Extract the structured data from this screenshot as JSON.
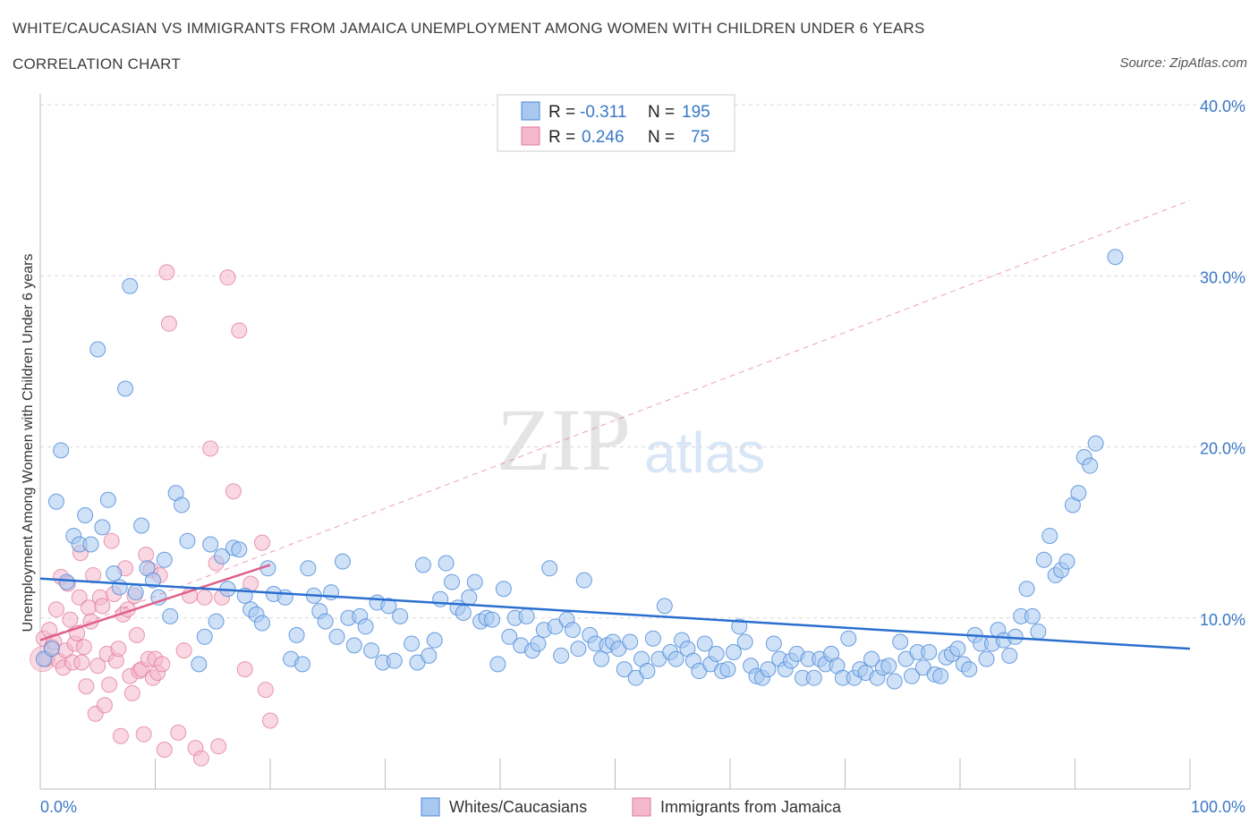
{
  "title": "WHITE/CAUCASIAN VS IMMIGRANTS FROM JAMAICA UNEMPLOYMENT AMONG WOMEN WITH CHILDREN UNDER 6 YEARS",
  "subtitle": "CORRELATION CHART",
  "source": "Source: ZipAtlas.com",
  "watermark": {
    "zip": "ZIP",
    "atlas": "atlas"
  },
  "legend": {
    "row1": {
      "r_label": "R =",
      "r_value": "-0.311",
      "n_label": "N =",
      "n_value": "195"
    },
    "row2": {
      "r_label": "R =",
      "r_value": "0.246",
      "n_label": "N =",
      "n_value": "75"
    }
  },
  "bottom_legend": {
    "series1": "Whites/Caucasians",
    "series2": "Immigrants from Jamaica"
  },
  "colors": {
    "blue_fill": "#a8c8f0",
    "blue_stroke": "#4a88d8",
    "blue_line": "#2a6fd0",
    "pink_fill": "#f4b8cc",
    "pink_stroke": "#e07898",
    "pink_line": "#e0608a",
    "grid": "#d8d8d8",
    "tick_text": "#3a78c8"
  },
  "chart_data": {
    "type": "scatter",
    "title": "WHITE/CAUCASIAN VS IMMIGRANTS FROM JAMAICA UNEMPLOYMENT AMONG WOMEN WITH CHILDREN UNDER 6 YEARS",
    "xlabel": "",
    "ylabel": "Unemployment Among Women with Children Under 6 years",
    "xlim": [
      0,
      100
    ],
    "ylim": [
      0,
      40
    ],
    "x_tick_labels": [
      "0.0%",
      "100.0%"
    ],
    "y_ticks": [
      10,
      20,
      30,
      40
    ],
    "y_tick_labels": [
      "10.0%",
      "20.0%",
      "30.0%",
      "40.0%"
    ],
    "grid": true,
    "legend_position": "top-center",
    "series": [
      {
        "name": "Whites/Caucasians",
        "R": -0.311,
        "N": 195,
        "trend": {
          "x": [
            0,
            100
          ],
          "y": [
            12.3,
            8.2
          ]
        },
        "points": [
          [
            0.3,
            7.6
          ],
          [
            1.0,
            8.2
          ],
          [
            1.4,
            16.8
          ],
          [
            1.8,
            19.8
          ],
          [
            2.3,
            12.1
          ],
          [
            2.9,
            14.8
          ],
          [
            3.4,
            14.3
          ],
          [
            3.9,
            16.0
          ],
          [
            4.4,
            14.3
          ],
          [
            5.0,
            25.7
          ],
          [
            5.4,
            15.3
          ],
          [
            5.9,
            16.9
          ],
          [
            6.4,
            12.6
          ],
          [
            6.9,
            11.8
          ],
          [
            7.4,
            23.4
          ],
          [
            7.8,
            29.4
          ],
          [
            8.3,
            11.5
          ],
          [
            8.8,
            15.4
          ],
          [
            9.3,
            12.9
          ],
          [
            9.8,
            12.2
          ],
          [
            10.3,
            11.2
          ],
          [
            10.8,
            13.4
          ],
          [
            11.3,
            10.1
          ],
          [
            11.8,
            17.3
          ],
          [
            12.3,
            16.6
          ],
          [
            12.8,
            14.5
          ],
          [
            13.8,
            7.3
          ],
          [
            14.3,
            8.9
          ],
          [
            14.8,
            14.3
          ],
          [
            15.3,
            9.8
          ],
          [
            15.8,
            13.6
          ],
          [
            16.3,
            11.7
          ],
          [
            16.8,
            14.1
          ],
          [
            17.3,
            14.0
          ],
          [
            17.8,
            11.3
          ],
          [
            18.3,
            10.5
          ],
          [
            18.8,
            10.2
          ],
          [
            19.3,
            9.7
          ],
          [
            19.8,
            12.9
          ],
          [
            20.3,
            11.4
          ],
          [
            21.3,
            11.2
          ],
          [
            21.8,
            7.6
          ],
          [
            22.3,
            9.0
          ],
          [
            22.8,
            7.3
          ],
          [
            23.3,
            12.9
          ],
          [
            23.8,
            11.3
          ],
          [
            24.3,
            10.4
          ],
          [
            24.8,
            9.8
          ],
          [
            25.3,
            11.5
          ],
          [
            25.8,
            8.9
          ],
          [
            26.3,
            13.3
          ],
          [
            26.8,
            10.0
          ],
          [
            27.3,
            8.4
          ],
          [
            27.8,
            10.1
          ],
          [
            28.3,
            9.5
          ],
          [
            28.8,
            8.1
          ],
          [
            29.3,
            10.9
          ],
          [
            29.8,
            7.4
          ],
          [
            30.3,
            10.7
          ],
          [
            30.8,
            7.5
          ],
          [
            31.3,
            10.1
          ],
          [
            32.3,
            8.5
          ],
          [
            32.8,
            7.4
          ],
          [
            33.3,
            13.1
          ],
          [
            33.8,
            7.8
          ],
          [
            34.3,
            8.7
          ],
          [
            34.8,
            11.1
          ],
          [
            35.3,
            13.2
          ],
          [
            35.8,
            12.1
          ],
          [
            36.3,
            10.6
          ],
          [
            36.8,
            10.3
          ],
          [
            37.3,
            11.2
          ],
          [
            37.8,
            12.1
          ],
          [
            38.3,
            9.8
          ],
          [
            38.8,
            10.0
          ],
          [
            39.3,
            9.9
          ],
          [
            39.8,
            7.3
          ],
          [
            40.3,
            11.7
          ],
          [
            40.8,
            8.9
          ],
          [
            41.3,
            10.0
          ],
          [
            41.8,
            8.4
          ],
          [
            42.3,
            10.1
          ],
          [
            42.8,
            8.1
          ],
          [
            43.3,
            8.5
          ],
          [
            43.8,
            9.3
          ],
          [
            44.3,
            12.9
          ],
          [
            44.8,
            9.5
          ],
          [
            45.3,
            7.8
          ],
          [
            45.8,
            9.9
          ],
          [
            46.3,
            9.3
          ],
          [
            46.8,
            8.2
          ],
          [
            47.3,
            12.2
          ],
          [
            47.8,
            9.0
          ],
          [
            48.3,
            8.5
          ],
          [
            48.8,
            7.6
          ],
          [
            49.3,
            8.4
          ],
          [
            49.8,
            8.6
          ],
          [
            50.3,
            8.2
          ],
          [
            50.8,
            7.0
          ],
          [
            51.3,
            8.6
          ],
          [
            51.8,
            6.5
          ],
          [
            52.3,
            7.6
          ],
          [
            52.8,
            6.9
          ],
          [
            53.3,
            8.8
          ],
          [
            53.8,
            7.6
          ],
          [
            54.3,
            10.7
          ],
          [
            54.8,
            8.0
          ],
          [
            55.3,
            7.6
          ],
          [
            55.8,
            8.7
          ],
          [
            56.3,
            8.2
          ],
          [
            56.8,
            7.5
          ],
          [
            57.3,
            6.9
          ],
          [
            57.8,
            8.5
          ],
          [
            58.3,
            7.3
          ],
          [
            58.8,
            7.9
          ],
          [
            59.3,
            6.9
          ],
          [
            59.8,
            7.0
          ],
          [
            60.3,
            8.0
          ],
          [
            60.8,
            9.5
          ],
          [
            61.3,
            8.6
          ],
          [
            61.8,
            7.2
          ],
          [
            62.3,
            6.6
          ],
          [
            62.8,
            6.5
          ],
          [
            63.3,
            7.0
          ],
          [
            63.8,
            8.5
          ],
          [
            64.3,
            7.6
          ],
          [
            64.8,
            7.0
          ],
          [
            65.3,
            7.5
          ],
          [
            65.8,
            7.9
          ],
          [
            66.3,
            6.5
          ],
          [
            66.8,
            7.6
          ],
          [
            67.3,
            6.5
          ],
          [
            67.8,
            7.6
          ],
          [
            68.3,
            7.3
          ],
          [
            68.8,
            7.9
          ],
          [
            69.3,
            7.2
          ],
          [
            69.8,
            6.5
          ],
          [
            70.3,
            8.8
          ],
          [
            70.8,
            6.5
          ],
          [
            71.3,
            7.0
          ],
          [
            71.8,
            6.8
          ],
          [
            72.3,
            7.6
          ],
          [
            72.8,
            6.5
          ],
          [
            73.3,
            7.1
          ],
          [
            73.8,
            7.2
          ],
          [
            74.3,
            6.3
          ],
          [
            74.8,
            8.6
          ],
          [
            75.3,
            7.6
          ],
          [
            75.8,
            6.6
          ],
          [
            76.3,
            8.0
          ],
          [
            76.8,
            7.1
          ],
          [
            77.3,
            8.0
          ],
          [
            77.8,
            6.7
          ],
          [
            78.3,
            6.6
          ],
          [
            78.8,
            7.7
          ],
          [
            79.3,
            7.9
          ],
          [
            79.8,
            8.2
          ],
          [
            80.3,
            7.3
          ],
          [
            80.8,
            7.0
          ],
          [
            81.3,
            9.0
          ],
          [
            81.8,
            8.5
          ],
          [
            82.3,
            7.6
          ],
          [
            82.8,
            8.5
          ],
          [
            83.3,
            9.3
          ],
          [
            83.8,
            8.7
          ],
          [
            84.3,
            7.8
          ],
          [
            84.8,
            8.9
          ],
          [
            85.3,
            10.1
          ],
          [
            85.8,
            11.7
          ],
          [
            86.3,
            10.1
          ],
          [
            86.8,
            9.2
          ],
          [
            87.3,
            13.4
          ],
          [
            87.8,
            14.8
          ],
          [
            88.3,
            12.5
          ],
          [
            88.8,
            12.8
          ],
          [
            89.3,
            13.3
          ],
          [
            89.8,
            16.6
          ],
          [
            90.3,
            17.3
          ],
          [
            90.8,
            19.4
          ],
          [
            91.3,
            18.9
          ],
          [
            91.8,
            20.2
          ],
          [
            93.5,
            31.1
          ]
        ]
      },
      {
        "name": "Immigrants from Jamaica",
        "R": 0.246,
        "N": 75,
        "trend": {
          "x": [
            0,
            20
          ],
          "y": [
            8.7,
            13.1
          ]
        },
        "trend_extended": {
          "x": [
            0,
            100
          ],
          "y": [
            8.7,
            34.4
          ]
        },
        "points": [
          [
            0.3,
            8.8
          ],
          [
            0.5,
            7.6
          ],
          [
            0.8,
            9.3
          ],
          [
            1.0,
            8.3
          ],
          [
            1.2,
            8.6
          ],
          [
            1.4,
            10.5
          ],
          [
            1.6,
            7.5
          ],
          [
            1.8,
            12.4
          ],
          [
            2.0,
            7.1
          ],
          [
            2.2,
            8.1
          ],
          [
            2.4,
            12.0
          ],
          [
            2.6,
            9.9
          ],
          [
            2.8,
            7.4
          ],
          [
            3.0,
            8.5
          ],
          [
            3.2,
            9.1
          ],
          [
            3.4,
            11.2
          ],
          [
            3.5,
            13.8
          ],
          [
            3.6,
            7.4
          ],
          [
            3.8,
            8.3
          ],
          [
            4.0,
            6.0
          ],
          [
            4.2,
            10.6
          ],
          [
            4.4,
            9.8
          ],
          [
            4.6,
            12.5
          ],
          [
            4.8,
            4.4
          ],
          [
            5.0,
            7.2
          ],
          [
            5.2,
            11.2
          ],
          [
            5.4,
            10.7
          ],
          [
            5.6,
            4.9
          ],
          [
            5.8,
            7.9
          ],
          [
            6.0,
            6.1
          ],
          [
            6.2,
            14.5
          ],
          [
            6.4,
            11.4
          ],
          [
            6.6,
            7.5
          ],
          [
            6.8,
            8.2
          ],
          [
            7.0,
            3.1
          ],
          [
            7.2,
            10.2
          ],
          [
            7.4,
            12.9
          ],
          [
            7.6,
            10.5
          ],
          [
            7.8,
            6.6
          ],
          [
            8.0,
            5.6
          ],
          [
            8.2,
            11.3
          ],
          [
            8.4,
            9.0
          ],
          [
            8.6,
            6.9
          ],
          [
            8.8,
            7.0
          ],
          [
            9.0,
            3.2
          ],
          [
            9.2,
            13.7
          ],
          [
            9.4,
            7.6
          ],
          [
            9.6,
            12.8
          ],
          [
            9.8,
            6.5
          ],
          [
            10.0,
            7.6
          ],
          [
            10.2,
            6.8
          ],
          [
            10.4,
            12.5
          ],
          [
            10.6,
            7.3
          ],
          [
            10.8,
            2.3
          ],
          [
            11.0,
            30.2
          ],
          [
            11.2,
            27.2
          ],
          [
            12.0,
            3.3
          ],
          [
            12.5,
            8.1
          ],
          [
            13.0,
            11.3
          ],
          [
            13.5,
            2.4
          ],
          [
            14.0,
            1.8
          ],
          [
            14.3,
            11.2
          ],
          [
            14.8,
            19.9
          ],
          [
            15.3,
            13.2
          ],
          [
            15.5,
            2.5
          ],
          [
            15.8,
            11.2
          ],
          [
            16.3,
            29.9
          ],
          [
            16.8,
            17.4
          ],
          [
            17.3,
            26.8
          ],
          [
            17.8,
            7.0
          ],
          [
            18.3,
            12.0
          ],
          [
            19.3,
            14.4
          ],
          [
            19.6,
            5.8
          ],
          [
            20.0,
            4.0
          ]
        ]
      }
    ]
  }
}
